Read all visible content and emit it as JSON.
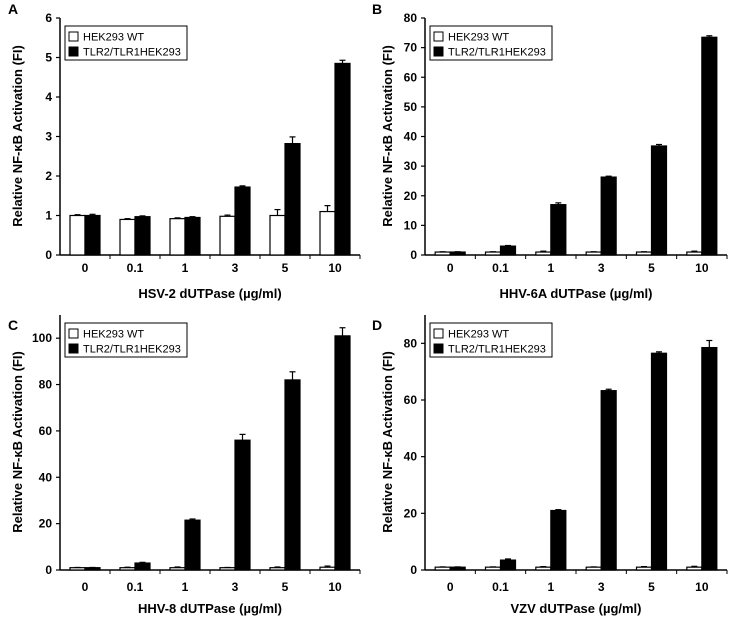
{
  "chart_data": [
    {
      "type": "bar",
      "panel": "A",
      "categories": [
        "0",
        "0.1",
        "1",
        "3",
        "5",
        "10"
      ],
      "series": [
        {
          "name": "HEK293 WT",
          "color": "#ffffff",
          "values": [
            1.0,
            0.9,
            0.92,
            0.98,
            1.0,
            1.1
          ],
          "errors": [
            0.02,
            0.02,
            0.02,
            0.03,
            0.15,
            0.15
          ]
        },
        {
          "name": "TLR2/TLR1HEK293",
          "color": "#000000",
          "values": [
            1.0,
            0.97,
            0.95,
            1.72,
            2.82,
            4.85
          ],
          "errors": [
            0.03,
            0.02,
            0.02,
            0.03,
            0.17,
            0.08
          ]
        }
      ],
      "ylim": [
        0,
        6
      ],
      "yticks": [
        "0",
        "1",
        "2",
        "3",
        "4",
        "5",
        "6"
      ],
      "xlabel": "HSV-2 dUTPase (µg/ml)",
      "ylabel": "Relative NF-κB Activation (FI)",
      "legend": "top-left"
    },
    {
      "type": "bar",
      "panel": "B",
      "categories": [
        "0",
        "0.1",
        "1",
        "3",
        "5",
        "10"
      ],
      "series": [
        {
          "name": "HEK293 WT",
          "color": "#ffffff",
          "values": [
            1,
            1,
            1,
            1,
            1,
            1
          ],
          "errors": [
            0.1,
            0.1,
            0.3,
            0.1,
            0.1,
            0.3
          ]
        },
        {
          "name": "TLR2/TLR1HEK293",
          "color": "#000000",
          "values": [
            1,
            3,
            17,
            26.3,
            36.8,
            73.5
          ],
          "errors": [
            0.1,
            0.2,
            0.6,
            0.3,
            0.5,
            0.5
          ]
        }
      ],
      "ylim": [
        0,
        80
      ],
      "yticks": [
        "0",
        "10",
        "20",
        "30",
        "40",
        "50",
        "60",
        "70",
        "80"
      ],
      "xlabel": "HHV-6A dUTPase (µg/ml)",
      "ylabel": "Relative NF-κB Activation (FI)",
      "legend": "top-left"
    },
    {
      "type": "bar",
      "panel": "C",
      "categories": [
        "0",
        "0.1",
        "1",
        "3",
        "5",
        "10"
      ],
      "series": [
        {
          "name": "HEK293 WT",
          "color": "#ffffff",
          "values": [
            1,
            1,
            1,
            1,
            1,
            1.2
          ],
          "errors": [
            0.1,
            0.2,
            0.3,
            0.1,
            0.3,
            0.5
          ]
        },
        {
          "name": "TLR2/TLR1HEK293",
          "color": "#000000",
          "values": [
            1,
            3,
            21.5,
            56,
            82,
            101
          ],
          "errors": [
            0.1,
            0.3,
            0.5,
            2.5,
            3.5,
            3.5
          ]
        }
      ],
      "ylim": [
        0,
        110
      ],
      "yticks": [
        "0",
        "20",
        "40",
        "60",
        "80",
        "100"
      ],
      "xlabel": "HHV-8 dUTPase (µg/ml)",
      "ylabel": "Relative NF-κB Activation (FI)",
      "legend": "top-left"
    },
    {
      "type": "bar",
      "panel": "D",
      "categories": [
        "0",
        "0.1",
        "1",
        "3",
        "5",
        "10"
      ],
      "series": [
        {
          "name": "HEK293 WT",
          "color": "#ffffff",
          "values": [
            1,
            1,
            1,
            1,
            1,
            1
          ],
          "errors": [
            0.1,
            0.1,
            0.2,
            0.1,
            0.2,
            0.3
          ]
        },
        {
          "name": "TLR2/TLR1HEK293",
          "color": "#000000",
          "values": [
            1,
            3.5,
            21,
            63.3,
            76.5,
            78.5
          ],
          "errors": [
            0.1,
            0.4,
            0.3,
            0.5,
            0.5,
            2.5
          ]
        }
      ],
      "ylim": [
        0,
        90
      ],
      "yticks": [
        "0",
        "20",
        "40",
        "60",
        "80"
      ],
      "xlabel": "VZV dUTPase (µg/ml)",
      "ylabel": "Relative NF-κB Activation (FI)",
      "legend": "top-left"
    }
  ]
}
